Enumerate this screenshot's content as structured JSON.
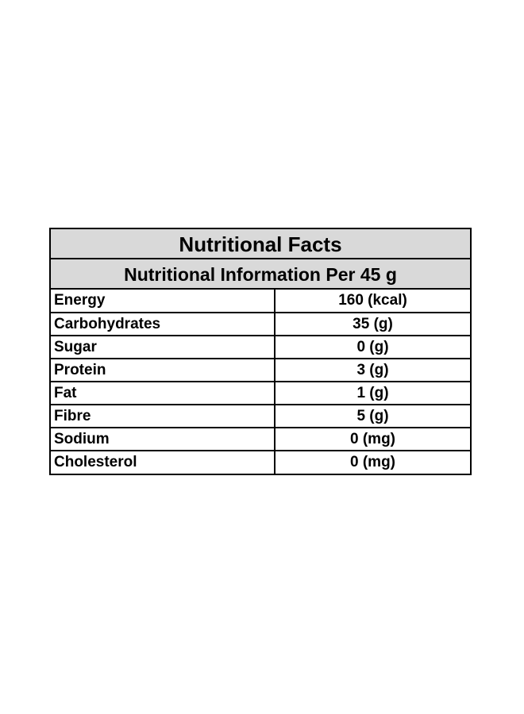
{
  "table": {
    "title": "Nutritional Facts",
    "subtitle": "Nutritional Information Per 45 g",
    "rows": [
      {
        "nutrient": "Energy",
        "amount": "160 (kcal)"
      },
      {
        "nutrient": "Carbohydrates",
        "amount": "35 (g)"
      },
      {
        "nutrient": "Sugar",
        "amount": "0 (g)"
      },
      {
        "nutrient": "Protein",
        "amount": "3 (g)"
      },
      {
        "nutrient": "Fat",
        "amount": "1 (g)"
      },
      {
        "nutrient": "Fibre",
        "amount": "5 (g)"
      },
      {
        "nutrient": "Sodium",
        "amount": "0 (mg)"
      },
      {
        "nutrient": "Cholesterol",
        "amount": "0 (mg)"
      }
    ]
  },
  "colors": {
    "header_background": "#d9d9d9",
    "border": "#000000",
    "text": "#000000"
  }
}
